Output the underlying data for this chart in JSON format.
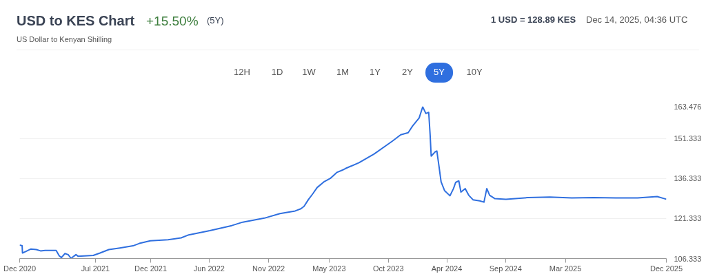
{
  "chart_data": {
    "type": "line",
    "title": "USD to KES Chart",
    "subtitle": "US Dollar to Kenyan Shilling",
    "annotations": [
      "+15.50%",
      "(5Y)",
      "1 USD = 128.89 KES",
      "Dec 14, 2025, 04:36 UTC",
      "12H",
      "1D",
      "1W",
      "1M",
      "1Y",
      "2Y",
      "5Y",
      "10Y"
    ],
    "x": [
      "2020-12-14",
      "2020-12-21",
      "2020-12-22",
      "2020-12-30",
      "2021-01-15",
      "2021-01-30",
      "2021-02-11",
      "2021-02-24",
      "2021-03-27",
      "2021-04-05",
      "2021-04-11",
      "2021-04-21",
      "2021-04-30",
      "2021-05-08",
      "2021-05-22",
      "2021-05-28",
      "2021-07-10",
      "2021-07-29",
      "2021-08-23",
      "2021-09-23",
      "2021-10-30",
      "2021-11-17",
      "2021-12-18",
      "2022-02-06",
      "2022-03-15",
      "2022-04-03",
      "2022-06-04",
      "2022-08-05",
      "2022-09-05",
      "2022-11-05",
      "2022-12-19",
      "2023-01-31",
      "2023-02-16",
      "2023-02-25",
      "2023-03-09",
      "2023-03-22",
      "2023-04-03",
      "2023-04-22",
      "2023-05-10",
      "2023-05-29",
      "2023-06-16",
      "2023-06-23",
      "2023-07-30",
      "2023-09-11",
      "2023-10-31",
      "2023-11-25",
      "2023-12-16",
      "2023-12-29",
      "2024-01-16",
      "2024-01-26",
      "2024-02-04",
      "2024-02-12",
      "2024-02-16",
      "2024-02-19",
      "2024-03-02",
      "2024-03-06",
      "2024-03-12",
      "2024-03-18",
      "2024-03-28",
      "2024-04-12",
      "2024-04-22",
      "2024-04-28",
      "2024-05-07",
      "2024-05-13",
      "2024-05-25",
      "2024-06-04",
      "2024-06-16",
      "2024-07-05",
      "2024-07-17",
      "2024-07-25",
      "2024-08-02",
      "2024-08-17",
      "2024-09-17",
      "2024-11-18",
      "2025-01-19",
      "2025-03-22",
      "2025-05-23",
      "2025-07-24",
      "2025-09-24",
      "2025-11-18",
      "2025-12-14"
    ],
    "series": [
      {
        "color": "#2f6fdf",
        "values": [
          111.4,
          111.1,
          108.4,
          108.9,
          109.9,
          109.7,
          109.2,
          109.4,
          109.4,
          107.3,
          106.7,
          108.2,
          107.8,
          106.4,
          107.8,
          107.2,
          107.5,
          108.4,
          109.7,
          110.3,
          111.1,
          112.0,
          113.0,
          113.4,
          114.1,
          115.1,
          116.8,
          118.7,
          120.0,
          121.5,
          123.2,
          124.2,
          125.0,
          125.9,
          128.4,
          130.7,
          133.0,
          135.1,
          136.4,
          138.7,
          139.7,
          140.2,
          142.3,
          145.6,
          150.3,
          152.8,
          153.6,
          156.2,
          159.1,
          163.3,
          160.8,
          161.2,
          152.8,
          144.8,
          146.5,
          146.7,
          141.0,
          135.1,
          131.8,
          129.9,
          132.6,
          134.9,
          135.5,
          131.3,
          132.6,
          130.1,
          128.4,
          128.0,
          127.5,
          132.6,
          130.1,
          128.8,
          128.6,
          129.2,
          129.4,
          129.1,
          129.2,
          129.1,
          129.1,
          129.6,
          128.6
        ]
      }
    ],
    "xlim": [
      "2020-12-14",
      "2025-12-14"
    ],
    "xticks": [
      {
        "value": "2020-12-14",
        "label": "Dec 2020"
      },
      {
        "value": "2021-07-16",
        "label": "Jul 2021"
      },
      {
        "value": "2021-12-19",
        "label": "Dec 2021"
      },
      {
        "value": "2022-06-02",
        "label": "Jun 2022"
      },
      {
        "value": "2022-11-17",
        "label": "Nov 2022"
      },
      {
        "value": "2023-05-07",
        "label": "May 2023"
      },
      {
        "value": "2023-10-21",
        "label": "Oct 2023"
      },
      {
        "value": "2024-04-03",
        "label": "Apr 2024"
      },
      {
        "value": "2024-09-16",
        "label": "Sep 2024"
      },
      {
        "value": "2025-03-04",
        "label": "Mar 2025"
      },
      {
        "value": "2025-12-14",
        "label": "Dec 2025"
      }
    ],
    "ylim": [
      106.333,
      163.476
    ],
    "yticks": [
      106.333,
      121.333,
      136.333,
      151.333,
      163.476
    ],
    "grid": "y",
    "marker": "none",
    "line_style": "solid"
  }
}
